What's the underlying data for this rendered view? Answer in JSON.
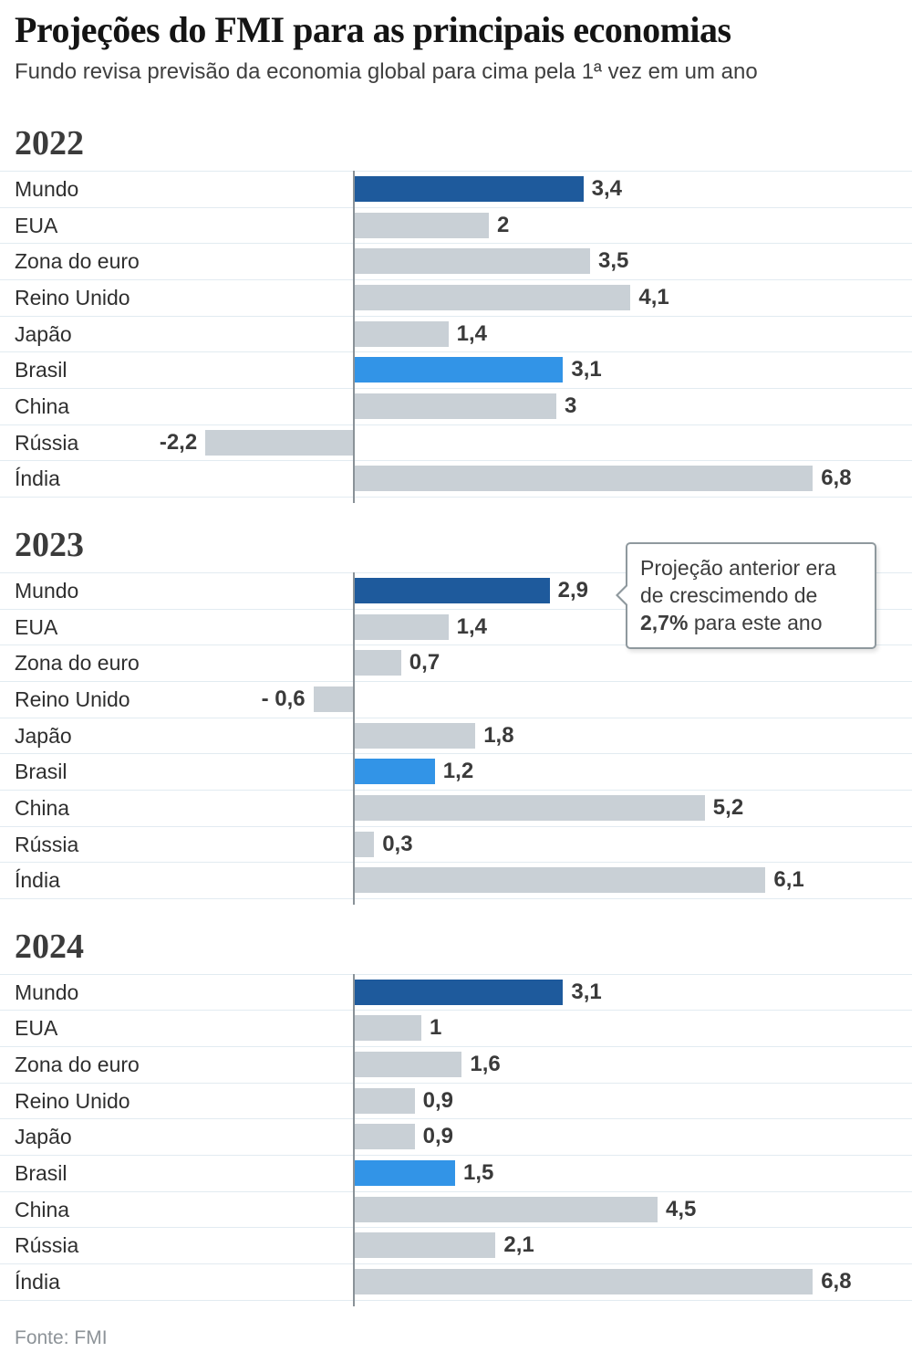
{
  "header": {
    "title": "Projeções do FMI para as principais economias",
    "subtitle": "Fundo revisa previsão da economia global para cima pela 1ª vez em um ano"
  },
  "footer": {
    "source": "Fonte: FMI"
  },
  "colors": {
    "world_bar": "#1e5a9c",
    "brasil_bar": "#3294e7",
    "default_bar": "#c9d0d6",
    "axis_line": "#8a9298",
    "row_divider": "#e2ebf1"
  },
  "annotation": {
    "line1": "Projeção anterior era",
    "line2": "de crescimendo de",
    "bold_value": "2,7%",
    "line3_rest": " para este ano",
    "attached_to": "2023 Mundo"
  },
  "chart_data": [
    {
      "type": "bar",
      "title": "2022",
      "orientation": "horizontal",
      "grid": false,
      "legend": false,
      "xlim": [
        -2.6,
        8.2
      ],
      "categories": [
        "Mundo",
        "EUA",
        "Zona do euro",
        "Reino Unido",
        "Japão",
        "Brasil",
        "China",
        "Rússia",
        "Índia"
      ],
      "values": [
        3.4,
        2,
        3.5,
        4.1,
        1.4,
        3.1,
        3,
        -2.2,
        6.8
      ],
      "value_labels": [
        "3,4",
        "2",
        "3,5",
        "4,1",
        "1,4",
        "3,1",
        "3",
        "-2,2",
        "6,8"
      ],
      "bar_roles": [
        "world",
        "default",
        "default",
        "default",
        "default",
        "brasil",
        "default",
        "default",
        "default"
      ]
    },
    {
      "type": "bar",
      "title": "2023",
      "orientation": "horizontal",
      "grid": false,
      "legend": false,
      "xlim": [
        -2.6,
        8.2
      ],
      "categories": [
        "Mundo",
        "EUA",
        "Zona do euro",
        "Reino Unido",
        "Japão",
        "Brasil",
        "China",
        "Rússia",
        "Índia"
      ],
      "values": [
        2.9,
        1.4,
        0.7,
        -0.6,
        1.8,
        1.2,
        5.2,
        0.3,
        6.1
      ],
      "value_labels": [
        "2,9",
        "1,4",
        "0,7",
        "- 0,6",
        "1,8",
        "1,2",
        "5,2",
        "0,3",
        "6,1"
      ],
      "bar_roles": [
        "world",
        "default",
        "default",
        "default",
        "default",
        "brasil",
        "default",
        "default",
        "default"
      ]
    },
    {
      "type": "bar",
      "title": "2024",
      "orientation": "horizontal",
      "grid": false,
      "legend": false,
      "xlim": [
        -2.6,
        8.2
      ],
      "categories": [
        "Mundo",
        "EUA",
        "Zona do euro",
        "Reino Unido",
        "Japão",
        "Brasil",
        "China",
        "Rússia",
        "Índia"
      ],
      "values": [
        3.1,
        1,
        1.6,
        0.9,
        0.9,
        1.5,
        4.5,
        2.1,
        6.8
      ],
      "value_labels": [
        "3,1",
        "1",
        "1,6",
        "0,9",
        "0,9",
        "1,5",
        "4,5",
        "2,1",
        "6,8"
      ],
      "bar_roles": [
        "world",
        "default",
        "default",
        "default",
        "default",
        "brasil",
        "default",
        "default",
        "default"
      ]
    }
  ]
}
